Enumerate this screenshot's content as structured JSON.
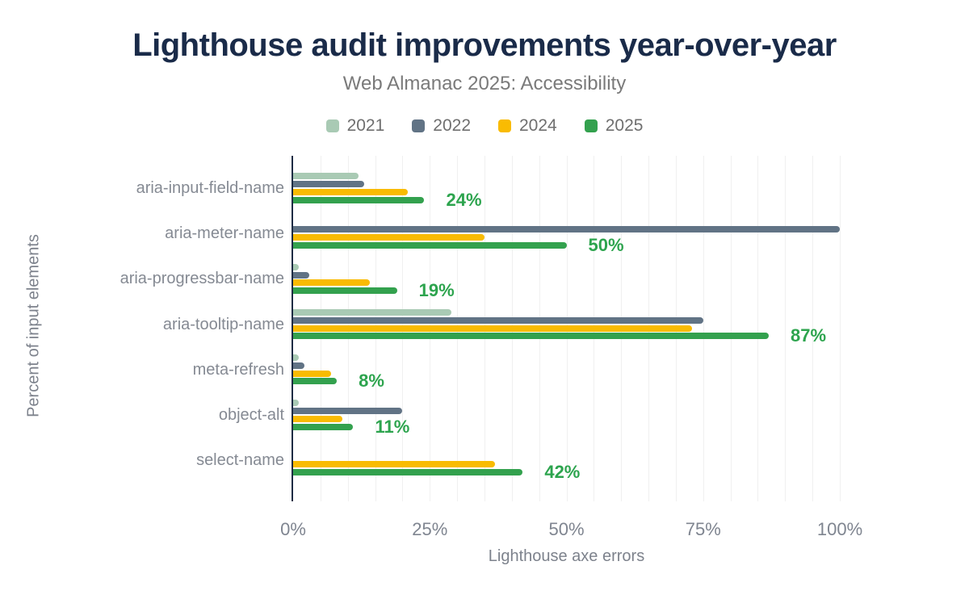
{
  "chart": {
    "title": "Lighthouse audit improvements year-over-year",
    "subtitle": "Web Almanac 2025: Accessibility",
    "x_axis_title": "Lighthouse axe errors",
    "y_axis_title": "Percent of input elements"
  },
  "legend": [
    {
      "label": "2021",
      "color": "#a9cab4"
    },
    {
      "label": "2022",
      "color": "#617385"
    },
    {
      "label": "2024",
      "color": "#f9bb02"
    },
    {
      "label": "2025",
      "color": "#33a14e"
    }
  ],
  "chart_data": {
    "type": "bar",
    "orientation": "horizontal-grouped",
    "categories": [
      "aria-input-field-name",
      "aria-meter-name",
      "aria-progressbar-name",
      "aria-tooltip-name",
      "meta-refresh",
      "object-alt",
      "select-name"
    ],
    "series": [
      {
        "name": "2021",
        "color": "#a9cab4",
        "values": [
          12,
          0,
          1,
          29,
          1,
          1,
          0
        ]
      },
      {
        "name": "2022",
        "color": "#617385",
        "values": [
          13,
          100,
          3,
          75,
          2,
          20,
          0
        ]
      },
      {
        "name": "2024",
        "color": "#f9bb02",
        "values": [
          21,
          35,
          14,
          73,
          7,
          9,
          37
        ]
      },
      {
        "name": "2025",
        "color": "#33a14e",
        "values": [
          24,
          50,
          19,
          87,
          8,
          11,
          42
        ]
      }
    ],
    "value_labels": {
      "series": "2025",
      "labels": [
        "24%",
        "50%",
        "19%",
        "87%",
        "8%",
        "11%",
        "42%"
      ]
    },
    "x_ticks": [
      {
        "label": "0%",
        "value": 0
      },
      {
        "label": "25%",
        "value": 25
      },
      {
        "label": "50%",
        "value": 50
      },
      {
        "label": "75%",
        "value": 75
      },
      {
        "label": "100%",
        "value": 100
      }
    ],
    "xlim": [
      0,
      100
    ],
    "grid_step_pct": 5,
    "legend_position": "top",
    "title": "Lighthouse audit improvements year-over-year",
    "subtitle": "Web Almanac 2025: Accessibility",
    "xlabel": "Lighthouse axe errors",
    "ylabel": "Percent of input elements"
  },
  "colors": {
    "title": "#1a2b49",
    "subtitle": "#7a7a7a",
    "axis_line": "#1e2c44",
    "gridline": "#f0f0f0",
    "tick_text": "#7f8590",
    "category_text": "#858a93",
    "value_label": "#2da44e",
    "background": "#ffffff"
  }
}
